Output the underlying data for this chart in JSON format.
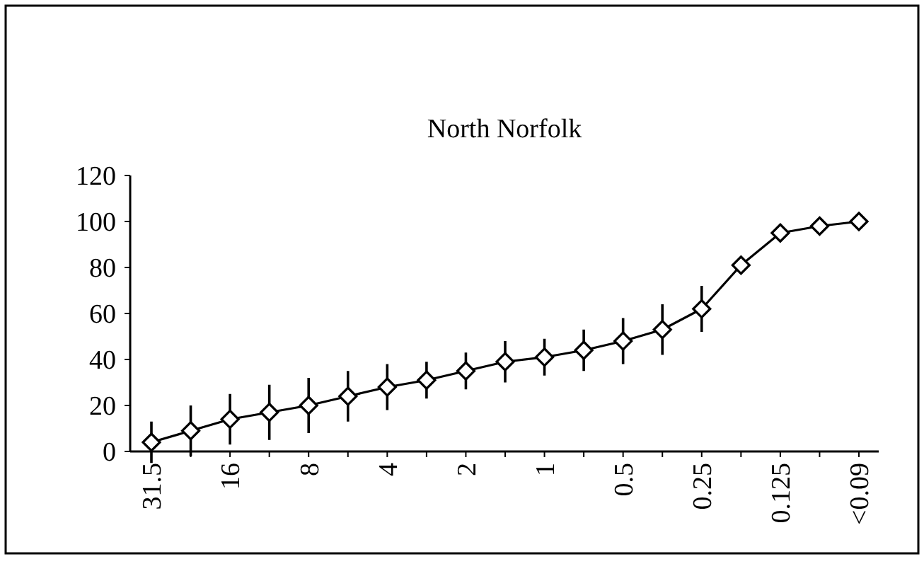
{
  "chart_data": {
    "type": "line",
    "title": "North Norfolk",
    "categories": [
      "31.5",
      null,
      "16",
      null,
      "8",
      null,
      "4",
      null,
      "2",
      null,
      "1",
      null,
      "0.5",
      null,
      "0.25",
      null,
      "0.125",
      null,
      "<0.09"
    ],
    "values": [
      4,
      9,
      14,
      17,
      20,
      24,
      28,
      31,
      35,
      39,
      41,
      44,
      48,
      53,
      62,
      81,
      95,
      98,
      100
    ],
    "errors": [
      9,
      11,
      11,
      12,
      12,
      11,
      10,
      8,
      8,
      9,
      8,
      9,
      10,
      11,
      10,
      null,
      null,
      null,
      null
    ],
    "color": "#000000",
    "marker": "diamond",
    "line_style": "solid",
    "grid": false,
    "ylim": [
      0,
      120
    ],
    "yticks": [
      0,
      20,
      40,
      60,
      80,
      100,
      120
    ]
  }
}
